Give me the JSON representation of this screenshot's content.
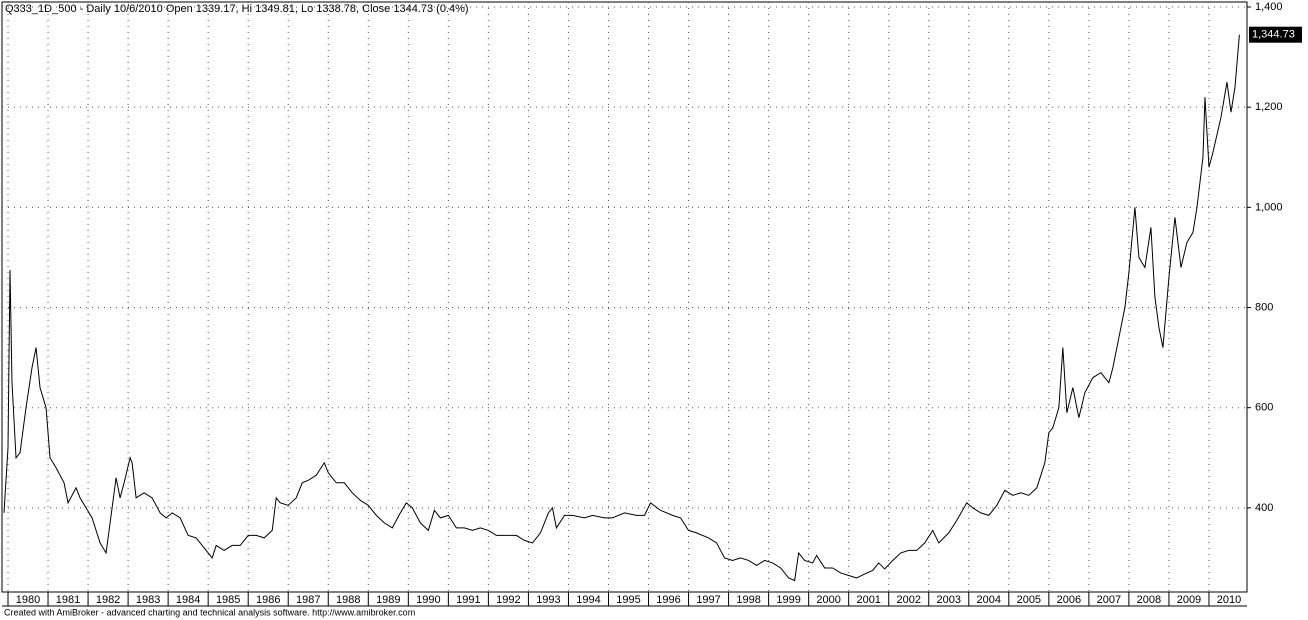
{
  "chart_data": {
    "type": "line",
    "title": "Q333_1D_500 - Daily 10/6/2010 Open 1339.17, Hi 1349.81, Lo 1338.78, Close 1344.73 (0.4%)",
    "footer": "Created with AmiBroker - advanced charting and technical analysis software. http://www.amibroker.com",
    "color": "#000000",
    "grid": true,
    "x": [
      1979.9,
      1980.0,
      1980.05,
      1980.1,
      1980.2,
      1980.3,
      1980.45,
      1980.6,
      1980.7,
      1980.8,
      1980.95,
      1981.05,
      1981.2,
      1981.4,
      1981.5,
      1981.7,
      1981.8,
      1981.95,
      1982.1,
      1982.3,
      1982.45,
      1982.6,
      1982.7,
      1982.8,
      1982.9,
      1983.05,
      1983.1,
      1983.2,
      1983.4,
      1983.6,
      1983.8,
      1983.95,
      1984.1,
      1984.3,
      1984.5,
      1984.7,
      1984.9,
      1985.1,
      1985.2,
      1985.4,
      1985.6,
      1985.8,
      1986.0,
      1986.2,
      1986.4,
      1986.6,
      1986.7,
      1986.8,
      1987.0,
      1987.2,
      1987.35,
      1987.5,
      1987.7,
      1987.9,
      1988.0,
      1988.2,
      1988.4,
      1988.6,
      1988.8,
      1989.0,
      1989.2,
      1989.4,
      1989.6,
      1989.8,
      1989.95,
      1990.1,
      1990.3,
      1990.5,
      1990.65,
      1990.8,
      1991.0,
      1991.2,
      1991.4,
      1991.6,
      1991.8,
      1992.0,
      1992.2,
      1992.5,
      1992.7,
      1992.9,
      1993.1,
      1993.3,
      1993.5,
      1993.6,
      1993.7,
      1993.9,
      1994.1,
      1994.4,
      1994.6,
      1994.9,
      1995.1,
      1995.4,
      1995.7,
      1995.9,
      1996.05,
      1996.3,
      1996.6,
      1996.8,
      1997.0,
      1997.2,
      1997.5,
      1997.7,
      1997.9,
      1998.1,
      1998.3,
      1998.5,
      1998.7,
      1998.9,
      1999.1,
      1999.3,
      1999.5,
      1999.65,
      1999.75,
      1999.9,
      2000.1,
      2000.2,
      2000.4,
      2000.6,
      2000.8,
      2001.0,
      2001.2,
      2001.4,
      2001.6,
      2001.75,
      2001.9,
      2002.1,
      2002.3,
      2002.5,
      2002.7,
      2002.9,
      2003.1,
      2003.25,
      2003.5,
      2003.7,
      2003.95,
      2004.1,
      2004.3,
      2004.5,
      2004.7,
      2004.9,
      2005.1,
      2005.3,
      2005.5,
      2005.7,
      2005.9,
      2006.0,
      2006.1,
      2006.25,
      2006.35,
      2006.45,
      2006.6,
      2006.75,
      2006.9,
      2007.1,
      2007.3,
      2007.5,
      2007.6,
      2007.75,
      2007.9,
      2008.0,
      2008.15,
      2008.25,
      2008.4,
      2008.55,
      2008.65,
      2008.75,
      2008.85,
      2009.0,
      2009.15,
      2009.3,
      2009.45,
      2009.6,
      2009.7,
      2009.85,
      2009.9,
      2010.0,
      2010.1,
      2010.3,
      2010.45,
      2010.55,
      2010.65,
      2010.76
    ],
    "values": [
      390,
      520,
      875,
      650,
      500,
      510,
      600,
      680,
      720,
      640,
      600,
      500,
      480,
      450,
      410,
      440,
      420,
      400,
      380,
      330,
      310,
      400,
      460,
      420,
      450,
      500,
      490,
      420,
      430,
      420,
      390,
      380,
      390,
      380,
      345,
      340,
      320,
      300,
      325,
      315,
      325,
      325,
      345,
      345,
      340,
      355,
      420,
      410,
      405,
      420,
      450,
      455,
      465,
      490,
      470,
      450,
      450,
      430,
      415,
      405,
      385,
      370,
      360,
      390,
      410,
      400,
      370,
      355,
      395,
      380,
      385,
      360,
      360,
      355,
      360,
      355,
      345,
      345,
      345,
      335,
      330,
      350,
      390,
      400,
      360,
      385,
      385,
      380,
      385,
      380,
      380,
      390,
      385,
      385,
      410,
      395,
      385,
      380,
      355,
      350,
      340,
      330,
      300,
      295,
      300,
      295,
      285,
      295,
      290,
      280,
      260,
      255,
      310,
      295,
      290,
      305,
      280,
      280,
      270,
      265,
      260,
      268,
      275,
      290,
      278,
      295,
      310,
      315,
      315,
      330,
      355,
      330,
      350,
      375,
      410,
      400,
      390,
      385,
      405,
      435,
      425,
      430,
      425,
      440,
      490,
      550,
      560,
      600,
      720,
      590,
      640,
      580,
      630,
      660,
      670,
      650,
      680,
      740,
      800,
      870,
      1000,
      900,
      880,
      960,
      820,
      760,
      720,
      860,
      980,
      880,
      930,
      950,
      1000,
      1100,
      1220,
      1080,
      1110,
      1180,
      1250,
      1190,
      1240,
      1344.73
    ],
    "last_value_label": "1,344.73",
    "xlim": [
      1979.85,
      2010.95
    ],
    "xticks": [
      1980,
      1981,
      1982,
      1983,
      1984,
      1985,
      1986,
      1987,
      1988,
      1989,
      1990,
      1991,
      1992,
      1993,
      1994,
      1995,
      1996,
      1997,
      1998,
      1999,
      2000,
      2001,
      2002,
      2003,
      2004,
      2005,
      2006,
      2007,
      2008,
      2009,
      2010
    ],
    "ylim": [
      232,
      1410
    ],
    "yticks": [
      {
        "value": 1400,
        "label": "1,400"
      },
      {
        "value": 1200,
        "label": "1,200"
      },
      {
        "value": 1000,
        "label": "1,000"
      },
      800,
      600,
      400
    ]
  }
}
